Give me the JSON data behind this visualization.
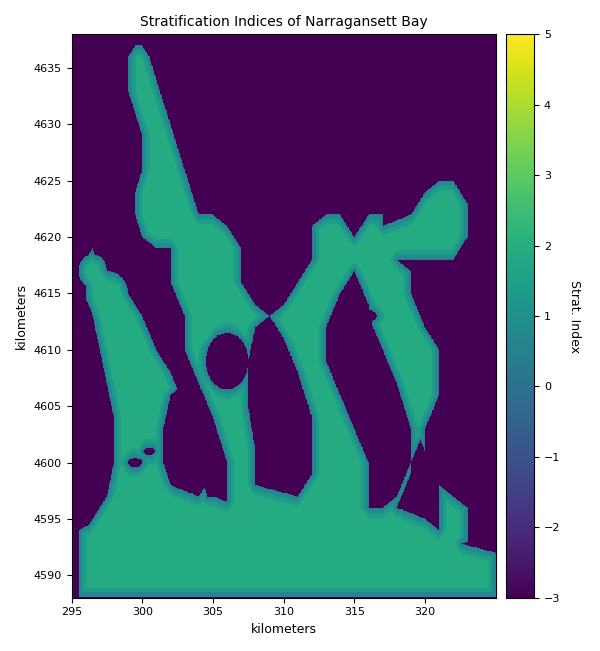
{
  "title": "Stratification Indices of Narragansett Bay",
  "xlabel": "kilometers",
  "ylabel": "kilometers",
  "xlim": [
    295,
    325
  ],
  "ylim": [
    4588,
    4638
  ],
  "colormap": "viridis",
  "vmin": -3,
  "vmax": 5,
  "colorbar_label": "Strat. Index",
  "colorbar_ticks": [
    -3,
    -2,
    -1,
    0,
    1,
    2,
    3,
    4,
    5
  ],
  "background_value": -3.0,
  "bay_deep_value": 1.9,
  "bay_mid_value": 1.4,
  "bay_shallow_value": 0.75,
  "xticks": [
    295,
    300,
    305,
    310,
    315,
    320
  ],
  "yticks": [
    4590,
    4595,
    4600,
    4605,
    4610,
    4615,
    4620,
    4625,
    4630,
    4635
  ],
  "title_fontsize": 10,
  "axis_fontsize": 9,
  "tick_fontsize": 8,
  "figsize": [
    6.0,
    6.51
  ],
  "dpi": 100
}
